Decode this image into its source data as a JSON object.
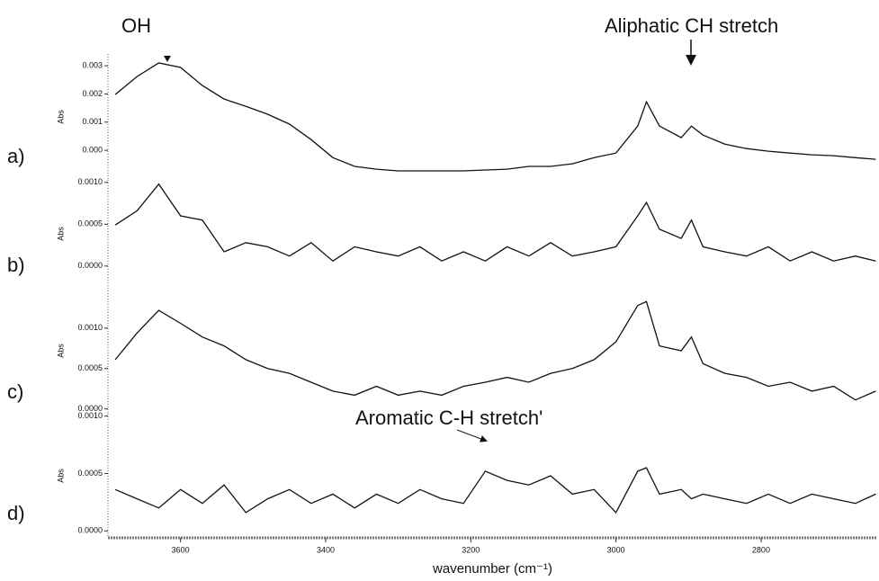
{
  "chart_data": [
    {
      "type": "line",
      "label": "a)",
      "ylabel": "Abs",
      "annotations": [
        "OH",
        "Aliphatic CH stretch"
      ],
      "xlim": [
        3700,
        2640
      ],
      "ylim": [
        -0.00105,
        0.00342
      ],
      "yticks": [
        0.003,
        0.002,
        0.001,
        {
          "value": 0,
          "label": "0.000"
        }
      ],
      "x": [
        3690,
        3660,
        3630,
        3600,
        3570,
        3540,
        3510,
        3480,
        3450,
        3420,
        3390,
        3360,
        3330,
        3300,
        3270,
        3240,
        3210,
        3180,
        3150,
        3120,
        3090,
        3060,
        3030,
        3000,
        2970,
        2958,
        2940,
        2910,
        2896,
        2880,
        2850,
        2820,
        2790,
        2760,
        2730,
        2700,
        2670,
        2642
      ],
      "series": [
        {
          "color": "#111111",
          "values": [
            0.00198,
            0.00262,
            0.0031,
            0.00294,
            0.0023,
            0.00182,
            0.00156,
            0.00128,
            0.00093,
            0.00038,
            -0.00026,
            -0.00057,
            -0.00067,
            -0.00073,
            -0.00073,
            -0.00073,
            -0.00073,
            -0.0007,
            -0.00067,
            -0.00057,
            -0.00057,
            -0.00048,
            -0.00026,
            -0.0001,
            0.00086,
            0.00172,
            0.00086,
            0.00045,
            0.00086,
            0.00054,
            0.00022,
            6e-05,
            -3e-05,
            -0.0001,
            -0.00016,
            -0.00019,
            -0.00026,
            -0.00032
          ]
        }
      ]
    },
    {
      "type": "line",
      "label": "b)",
      "ylabel": "Abs",
      "xlim": [
        3700,
        2640
      ],
      "ylim": [
        -0.00026,
        0.00103
      ],
      "yticks": [
        {
          "value": 0.001,
          "label": "0.0010"
        },
        0.0005,
        {
          "value": 0,
          "label": "0.0000"
        }
      ],
      "x": [
        3690,
        3660,
        3630,
        3600,
        3570,
        3540,
        3510,
        3480,
        3450,
        3420,
        3390,
        3360,
        3330,
        3300,
        3270,
        3240,
        3210,
        3180,
        3150,
        3120,
        3090,
        3060,
        3030,
        3000,
        2970,
        2958,
        2940,
        2910,
        2896,
        2880,
        2850,
        2820,
        2790,
        2760,
        2730,
        2700,
        2670,
        2642
      ],
      "series": [
        {
          "color": "#111111",
          "values": [
            0.00049,
            0.00066,
            0.00098,
            0.0006,
            0.00055,
            0.00017,
            0.00028,
            0.00023,
            0.00012,
            0.00028,
            6e-05,
            0.00023,
            0.00017,
            0.00012,
            0.00023,
            6e-05,
            0.00017,
            6e-05,
            0.00023,
            0.00012,
            0.00028,
            0.00012,
            0.00017,
            0.00023,
            0.0006,
            0.00076,
            0.00044,
            0.00033,
            0.00055,
            0.00023,
            0.00017,
            0.00012,
            0.00023,
            6e-05,
            0.00017,
            6e-05,
            0.00012,
            6e-05
          ]
        }
      ]
    },
    {
      "type": "line",
      "label": "c)",
      "ylabel": "Abs",
      "xlim": [
        3700,
        2640
      ],
      "ylim": [
        -6e-05,
        0.0015
      ],
      "yticks": [
        {
          "value": 0.001,
          "label": "0.0010"
        },
        0.0005,
        {
          "value": 0,
          "label": "0.0000"
        }
      ],
      "x": [
        3690,
        3660,
        3630,
        3600,
        3570,
        3540,
        3510,
        3480,
        3450,
        3420,
        3390,
        3360,
        3330,
        3300,
        3270,
        3240,
        3210,
        3180,
        3150,
        3120,
        3090,
        3060,
        3030,
        3000,
        2970,
        2958,
        2940,
        2910,
        2896,
        2880,
        2850,
        2820,
        2790,
        2760,
        2730,
        2700,
        2670,
        2642
      ],
      "series": [
        {
          "color": "#111111",
          "values": [
            0.00061,
            0.00094,
            0.00122,
            0.00106,
            0.00089,
            0.00078,
            0.00061,
            0.0005,
            0.00044,
            0.00033,
            0.00022,
            0.00017,
            0.00028,
            0.00017,
            0.00022,
            0.00017,
            0.00028,
            0.00033,
            0.00039,
            0.00033,
            0.00044,
            0.0005,
            0.00061,
            0.00083,
            0.00128,
            0.00133,
            0.00078,
            0.00072,
            0.00089,
            0.00056,
            0.00044,
            0.00039,
            0.00028,
            0.00033,
            0.00022,
            0.00028,
            0.00011,
            0.00022
          ]
        }
      ]
    },
    {
      "type": "line",
      "label": "d)",
      "ylabel": "Abs",
      "annotations": [
        "Aromatic C-H stretch'"
      ],
      "xlabel": "wavenumber (cm⁻¹)",
      "xlim": [
        3700,
        2640
      ],
      "ylim": [
        -6e-05,
        0.00102
      ],
      "xticks": [
        3600,
        3400,
        3200,
        3000,
        2800
      ],
      "yticks": [
        {
          "value": 0.001,
          "label": "0.0010"
        },
        0.0005,
        {
          "value": 0,
          "label": "0.0000"
        }
      ],
      "x": [
        3690,
        3660,
        3630,
        3600,
        3570,
        3540,
        3510,
        3480,
        3450,
        3420,
        3390,
        3360,
        3330,
        3300,
        3270,
        3240,
        3210,
        3180,
        3150,
        3120,
        3090,
        3060,
        3030,
        3000,
        2970,
        2958,
        2940,
        2910,
        2896,
        2880,
        2850,
        2820,
        2790,
        2760,
        2730,
        2700,
        2670,
        2642
      ],
      "series": [
        {
          "color": "#111111",
          "values": [
            0.00036,
            0.00028,
            0.0002,
            0.00036,
            0.00024,
            0.0004,
            0.00016,
            0.00028,
            0.00036,
            0.00024,
            0.00032,
            0.0002,
            0.00032,
            0.00024,
            0.00036,
            0.00028,
            0.00024,
            0.00052,
            0.00044,
            0.0004,
            0.00048,
            0.00032,
            0.00036,
            0.00016,
            0.00052,
            0.00055,
            0.00032,
            0.00036,
            0.00028,
            0.00032,
            0.00028,
            0.00024,
            0.00032,
            0.00024,
            0.00032,
            0.00028,
            0.00024,
            0.00032
          ]
        }
      ]
    }
  ]
}
